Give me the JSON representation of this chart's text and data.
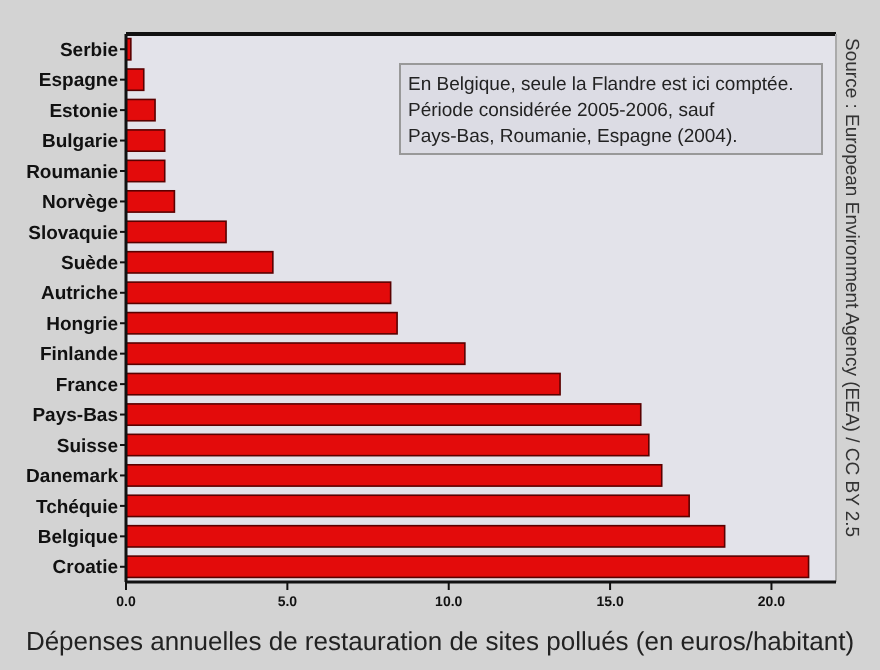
{
  "chart_data": {
    "type": "bar",
    "orientation": "horizontal",
    "xlabel": "Dépenses annuelles de restauration de sites pollués (en euros/habitant)",
    "categories": [
      "Serbie",
      "Espagne",
      "Estonie",
      "Bulgarie",
      "Roumanie",
      "Norvège",
      "Slovaquie",
      "Suède",
      "Autriche",
      "Hongrie",
      "Finlande",
      "France",
      "Pays-Bas",
      "Suisse",
      "Danemark",
      "Tchéquie",
      "Belgique",
      "Croatie"
    ],
    "values": [
      0.15,
      0.55,
      0.9,
      1.2,
      1.2,
      1.5,
      3.1,
      4.55,
      8.2,
      8.4,
      10.5,
      13.45,
      15.95,
      16.2,
      16.6,
      17.45,
      18.55,
      21.15
    ],
    "color": "#e30b0b",
    "xlim": [
      0,
      22
    ],
    "xticks": [
      {
        "value": 0,
        "label": "0.0"
      },
      {
        "value": 5,
        "label": "5.0"
      },
      {
        "value": 10,
        "label": "10.0"
      },
      {
        "value": 15,
        "label": "15.0"
      },
      {
        "value": 20,
        "label": "20.0"
      }
    ],
    "grid": false,
    "annotations": [
      "En Belgique, seule la Flandre est ici comptée.\nPériode considérée 2005-2006, sauf\nPays-Bas, Roumanie, Espagne  (2004).",
      "Source : European Environment Agency (EEA)  / CC BY 2.5"
    ]
  }
}
